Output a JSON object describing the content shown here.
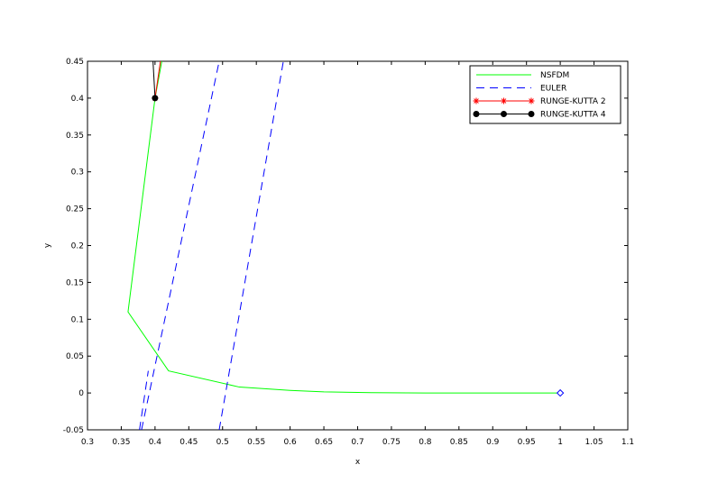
{
  "chart_data": {
    "type": "line",
    "xlabel": "x",
    "ylabel": "y",
    "xlim": [
      0.3,
      1.1
    ],
    "ylim": [
      -0.05,
      0.45
    ],
    "x_ticks": [
      "0.3",
      "0.35",
      "0.4",
      "0.45",
      "0.5",
      "0.55",
      "0.6",
      "0.65",
      "0.7",
      "0.75",
      "0.8",
      "0.85",
      "0.9",
      "0.95",
      "1",
      "1.05",
      "1.1"
    ],
    "y_ticks": [
      "-0.05",
      "0",
      "0.05",
      "0.1",
      "0.15",
      "0.2",
      "0.25",
      "0.3",
      "0.35",
      "0.4",
      "0.45"
    ],
    "grid": false,
    "legend_position": "top-right",
    "series": [
      {
        "name": "NSFDM",
        "color": "#00ff00",
        "style": "solid",
        "marker": "none",
        "x": [
          1.0,
          0.9,
          0.8,
          0.72,
          0.65,
          0.6,
          0.525,
          0.42,
          0.36,
          0.4,
          0.41
        ],
        "y": [
          0.0,
          0.0,
          0.0,
          0.0005,
          0.0015,
          0.0035,
          0.008,
          0.03,
          0.11,
          0.4,
          0.45
        ]
      },
      {
        "name": "EULER",
        "color": "#0000ff",
        "style": "dashed",
        "marker": "none",
        "x": [
          0.495,
          0.59,
          null,
          0.38,
          0.495
        ],
        "y": [
          -0.05,
          0.45,
          null,
          -0.05,
          0.45
        ]
      },
      {
        "name": "RUNGE-KUTTA 2",
        "color": "#ff0000",
        "style": "solid",
        "marker": "star",
        "x": [
          0.4,
          0.408
        ],
        "y": [
          0.4,
          0.45
        ]
      },
      {
        "name": "RUNGE-KUTTA 4",
        "color": "#000000",
        "style": "solid",
        "marker": "circle",
        "x": [
          0.4,
          0.397
        ],
        "y": [
          0.4,
          0.45
        ]
      },
      {
        "name": "",
        "color": "#0000ff",
        "style": "none",
        "marker": "diamond",
        "x": [
          1.0
        ],
        "y": [
          0.0
        ]
      },
      {
        "name": "",
        "color": "#0000ff",
        "style": "dashed",
        "marker": "none",
        "x": [
          0.377,
          0.39
        ],
        "y": [
          -0.05,
          0.03
        ]
      }
    ]
  }
}
